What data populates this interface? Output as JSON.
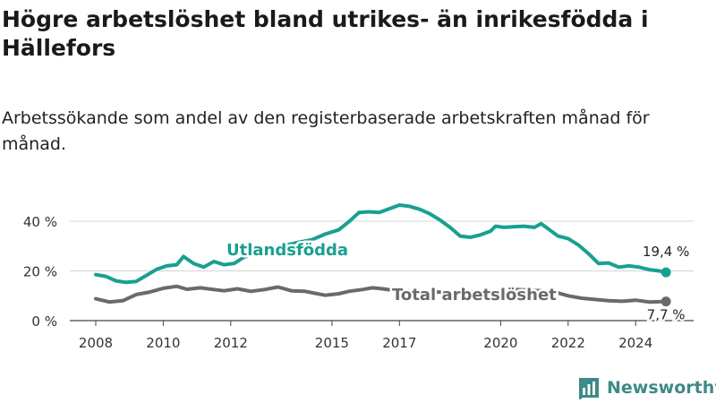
{
  "chart_data": {
    "type": "line",
    "title": "Högre arbetslöshet bland utrikes- än inrikesfödda i Hällefors",
    "subtitle": "Arbetssökande som andel av den registerbaserade arbetskraften månad för månad.",
    "y_ticks": [
      0,
      20,
      40
    ],
    "y_tick_labels": [
      "0 %",
      "20 %",
      "40 %"
    ],
    "x_ticks": [
      2008,
      2010,
      2012,
      2015,
      2017,
      2020,
      2022,
      2024
    ],
    "xlim": [
      2007.6,
      2025.3
    ],
    "ylim": [
      0,
      50
    ],
    "grid": true,
    "legend": "inline-labels",
    "series": [
      {
        "name": "Utlandsfödda",
        "color": "#18a090",
        "end_label": "19,4 %",
        "points": [
          [
            2008.0,
            18.5
          ],
          [
            2008.3,
            17.8
          ],
          [
            2008.6,
            16.0
          ],
          [
            2008.9,
            15.4
          ],
          [
            2009.2,
            15.8
          ],
          [
            2009.5,
            18.2
          ],
          [
            2009.8,
            20.6
          ],
          [
            2010.1,
            22.0
          ],
          [
            2010.4,
            22.5
          ],
          [
            2010.6,
            25.8
          ],
          [
            2010.9,
            23.0
          ],
          [
            2011.2,
            21.5
          ],
          [
            2011.5,
            23.8
          ],
          [
            2011.8,
            22.5
          ],
          [
            2012.1,
            23.0
          ],
          [
            2012.4,
            25.6
          ],
          [
            2012.8,
            27.2
          ],
          [
            2013.2,
            29.0
          ],
          [
            2013.6,
            30.2
          ],
          [
            2014.0,
            31.5
          ],
          [
            2014.4,
            32.5
          ],
          [
            2014.8,
            34.8
          ],
          [
            2015.2,
            36.5
          ],
          [
            2015.5,
            39.8
          ],
          [
            2015.8,
            43.5
          ],
          [
            2016.1,
            43.8
          ],
          [
            2016.4,
            43.5
          ],
          [
            2016.7,
            45.0
          ],
          [
            2017.0,
            46.5
          ],
          [
            2017.3,
            46.0
          ],
          [
            2017.6,
            44.8
          ],
          [
            2017.9,
            43.0
          ],
          [
            2018.2,
            40.5
          ],
          [
            2018.5,
            37.5
          ],
          [
            2018.8,
            34.0
          ],
          [
            2019.1,
            33.5
          ],
          [
            2019.4,
            34.5
          ],
          [
            2019.7,
            36.0
          ],
          [
            2019.85,
            38.0
          ],
          [
            2020.1,
            37.5
          ],
          [
            2020.4,
            37.8
          ],
          [
            2020.7,
            38.0
          ],
          [
            2021.0,
            37.5
          ],
          [
            2021.2,
            39.0
          ],
          [
            2021.4,
            37.0
          ],
          [
            2021.7,
            34.0
          ],
          [
            2022.0,
            33.0
          ],
          [
            2022.3,
            30.5
          ],
          [
            2022.6,
            27.0
          ],
          [
            2022.9,
            23.0
          ],
          [
            2023.2,
            23.2
          ],
          [
            2023.5,
            21.5
          ],
          [
            2023.8,
            22.0
          ],
          [
            2024.1,
            21.5
          ],
          [
            2024.4,
            20.5
          ],
          [
            2024.7,
            20.0
          ],
          [
            2024.9,
            19.4
          ]
        ]
      },
      {
        "name": "Total arbetslöshet",
        "color": "#6a6a6a",
        "end_label": "7,7 %",
        "points": [
          [
            2008.0,
            8.8
          ],
          [
            2008.4,
            7.5
          ],
          [
            2008.8,
            8.0
          ],
          [
            2009.2,
            10.5
          ],
          [
            2009.6,
            11.5
          ],
          [
            2010.0,
            13.0
          ],
          [
            2010.4,
            13.8
          ],
          [
            2010.7,
            12.6
          ],
          [
            2011.1,
            13.2
          ],
          [
            2011.5,
            12.5
          ],
          [
            2011.8,
            12.0
          ],
          [
            2012.2,
            12.8
          ],
          [
            2012.6,
            11.8
          ],
          [
            2013.0,
            12.5
          ],
          [
            2013.4,
            13.5
          ],
          [
            2013.8,
            12.0
          ],
          [
            2014.2,
            11.8
          ],
          [
            2014.5,
            11.0
          ],
          [
            2014.8,
            10.2
          ],
          [
            2015.2,
            10.8
          ],
          [
            2015.5,
            11.8
          ],
          [
            2015.9,
            12.5
          ],
          [
            2016.2,
            13.2
          ],
          [
            2016.5,
            12.8
          ],
          [
            2016.8,
            12.2
          ],
          [
            2017.2,
            12.0
          ],
          [
            2017.6,
            11.8
          ],
          [
            2018.0,
            11.5
          ],
          [
            2018.4,
            11.5
          ],
          [
            2018.8,
            11.2
          ],
          [
            2019.2,
            11.5
          ],
          [
            2019.6,
            11.8
          ],
          [
            2020.0,
            12.0
          ],
          [
            2020.4,
            12.5
          ],
          [
            2020.8,
            12.3
          ],
          [
            2021.2,
            12.0
          ],
          [
            2021.6,
            11.5
          ],
          [
            2022.0,
            10.0
          ],
          [
            2022.4,
            9.0
          ],
          [
            2022.8,
            8.5
          ],
          [
            2023.2,
            8.0
          ],
          [
            2023.6,
            7.8
          ],
          [
            2024.0,
            8.2
          ],
          [
            2024.4,
            7.5
          ],
          [
            2024.9,
            7.7
          ]
        ]
      }
    ]
  },
  "brand": {
    "name": "Newsworthy",
    "icon": "bar-chart-logo-icon",
    "color": "#3d8a86"
  }
}
